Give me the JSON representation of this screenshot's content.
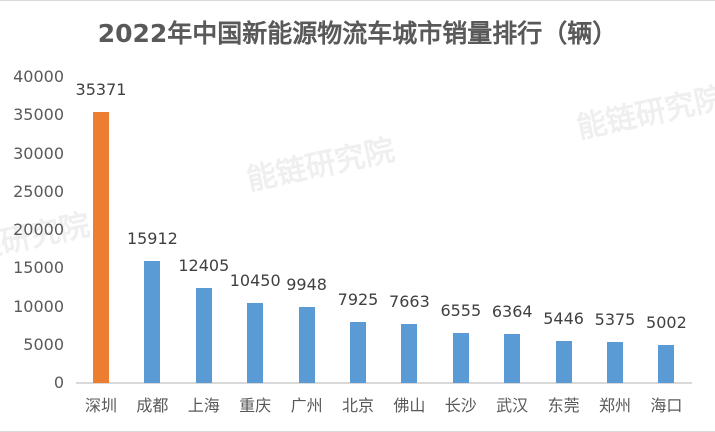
{
  "title": "2022年中国新能源物流车城市销量排行（辆）",
  "watermark": "能链研究院",
  "colors": {
    "highlight": "#ED7D31",
    "default": "#5B9BD5",
    "axis": "#D9D9D9",
    "text": "#595959"
  },
  "chart_data": {
    "type": "bar",
    "title": "2022年中国新能源物流车城市销量排行（辆）",
    "xlabel": "",
    "ylabel": "",
    "ylim": [
      0,
      40000
    ],
    "yticks": [
      0,
      5000,
      10000,
      15000,
      20000,
      25000,
      30000,
      35000,
      40000
    ],
    "grid": false,
    "legend": null,
    "categories": [
      "深圳",
      "成都",
      "上海",
      "重庆",
      "广州",
      "北京",
      "佛山",
      "长沙",
      "武汉",
      "东莞",
      "郑州",
      "海口"
    ],
    "values": [
      35371,
      15912,
      12405,
      10450,
      9948,
      7925,
      7663,
      6555,
      6364,
      5446,
      5375,
      5002
    ],
    "highlight_index": 0,
    "data_labels": true
  }
}
